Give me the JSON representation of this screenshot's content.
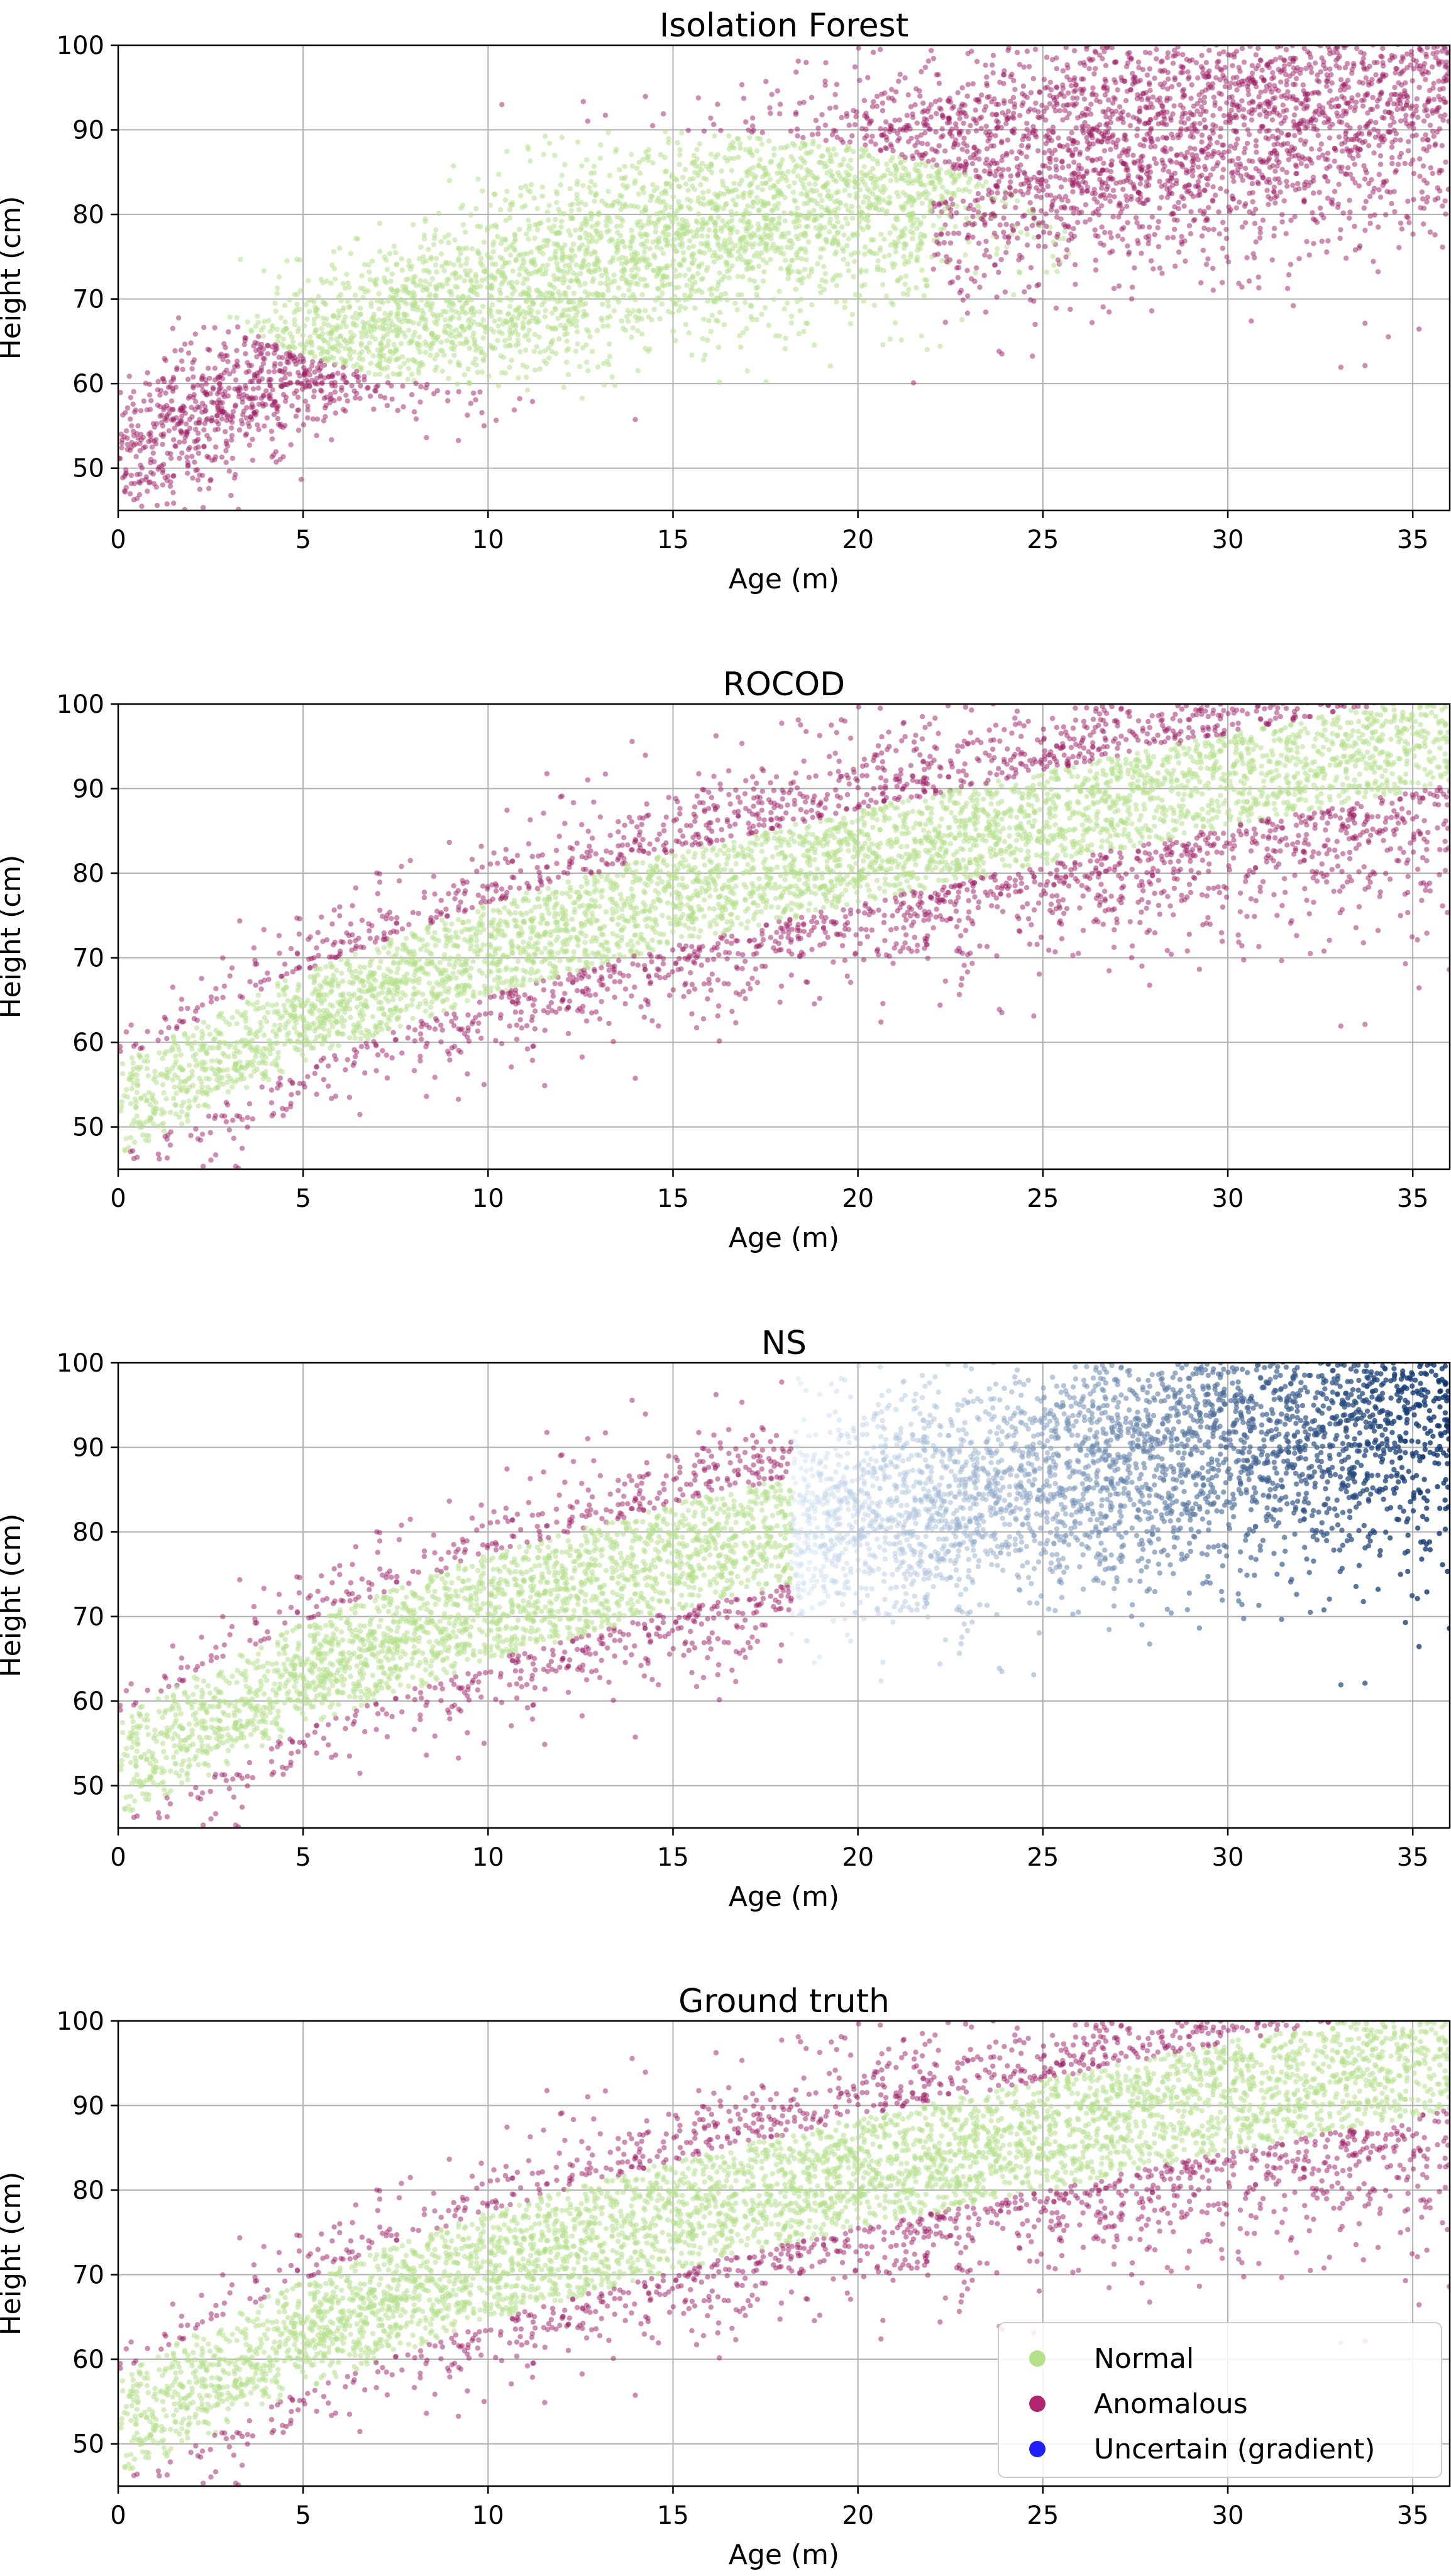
{
  "chart_data": [
    {
      "type": "scatter",
      "title": "Isolation Forest",
      "xlabel": "Age (m)",
      "ylabel": "Height (cm)",
      "xlim": [
        0,
        36
      ],
      "ylim": [
        45,
        100
      ],
      "xticks": [
        "0",
        "5",
        "10",
        "15",
        "20",
        "25",
        "30",
        "35"
      ],
      "yticks": [
        "50",
        "60",
        "70",
        "80",
        "90",
        "100"
      ],
      "grid": true,
      "classification": "isolation-forest",
      "series": [
        "Normal",
        "Anomalous"
      ]
    },
    {
      "type": "scatter",
      "title": "ROCOD",
      "xlabel": "Age (m)",
      "ylabel": "Height (cm)",
      "xlim": [
        0,
        36
      ],
      "ylim": [
        45,
        100
      ],
      "xticks": [
        "0",
        "5",
        "10",
        "15",
        "20",
        "25",
        "30",
        "35"
      ],
      "yticks": [
        "50",
        "60",
        "70",
        "80",
        "90",
        "100"
      ],
      "grid": true,
      "classification": "band",
      "band_halfwidth_cm": 5.5,
      "series": [
        "Normal",
        "Anomalous"
      ]
    },
    {
      "type": "scatter",
      "title": "NS",
      "xlabel": "Age (m)",
      "ylabel": "Height (cm)",
      "xlim": [
        0,
        36
      ],
      "ylim": [
        45,
        100
      ],
      "xticks": [
        "0",
        "5",
        "10",
        "15",
        "20",
        "25",
        "30",
        "35"
      ],
      "yticks": [
        "50",
        "60",
        "70",
        "80",
        "90",
        "100"
      ],
      "grid": true,
      "classification": "band-with-uncertain",
      "band_halfwidth_cm": 6.3,
      "uncertain_from_age": 18.2,
      "series": [
        "Normal",
        "Anomalous",
        "Uncertain (gradient)"
      ]
    },
    {
      "type": "scatter",
      "title": "Ground truth",
      "xlabel": "Age (m)",
      "ylabel": "Height (cm)",
      "xlim": [
        0,
        36
      ],
      "ylim": [
        45,
        100
      ],
      "xticks": [
        "0",
        "5",
        "10",
        "15",
        "20",
        "25",
        "30",
        "35"
      ],
      "yticks": [
        "50",
        "60",
        "70",
        "80",
        "90",
        "100"
      ],
      "grid": true,
      "classification": "band",
      "band_halfwidth_cm": 6.5,
      "series": [
        "Normal",
        "Anomalous"
      ]
    }
  ],
  "data_model": {
    "description_of_trend": "height grows with age",
    "trend_points": [
      [
        0,
        52
      ],
      [
        5,
        63
      ],
      [
        10,
        71
      ],
      [
        15,
        77
      ],
      [
        20,
        82
      ],
      [
        25,
        86.5
      ],
      [
        30,
        91
      ],
      [
        36,
        96
      ]
    ],
    "points_per_panel": 6500
  },
  "legend": {
    "location": "lower-right of last panel",
    "items": [
      {
        "label": "Normal",
        "color": "#b5e08a"
      },
      {
        "label": "Anomalous",
        "color": "#b0256e"
      },
      {
        "label": "Uncertain (gradient)",
        "color": "#1f1fff"
      }
    ]
  },
  "colors": {
    "normal": "#b5e08a",
    "anomalous": "#9c1a62",
    "uncertain_light": "#c6dbef",
    "uncertain_dark": "#08306b",
    "grid": "#b0b0b0",
    "axes": "#000000"
  }
}
